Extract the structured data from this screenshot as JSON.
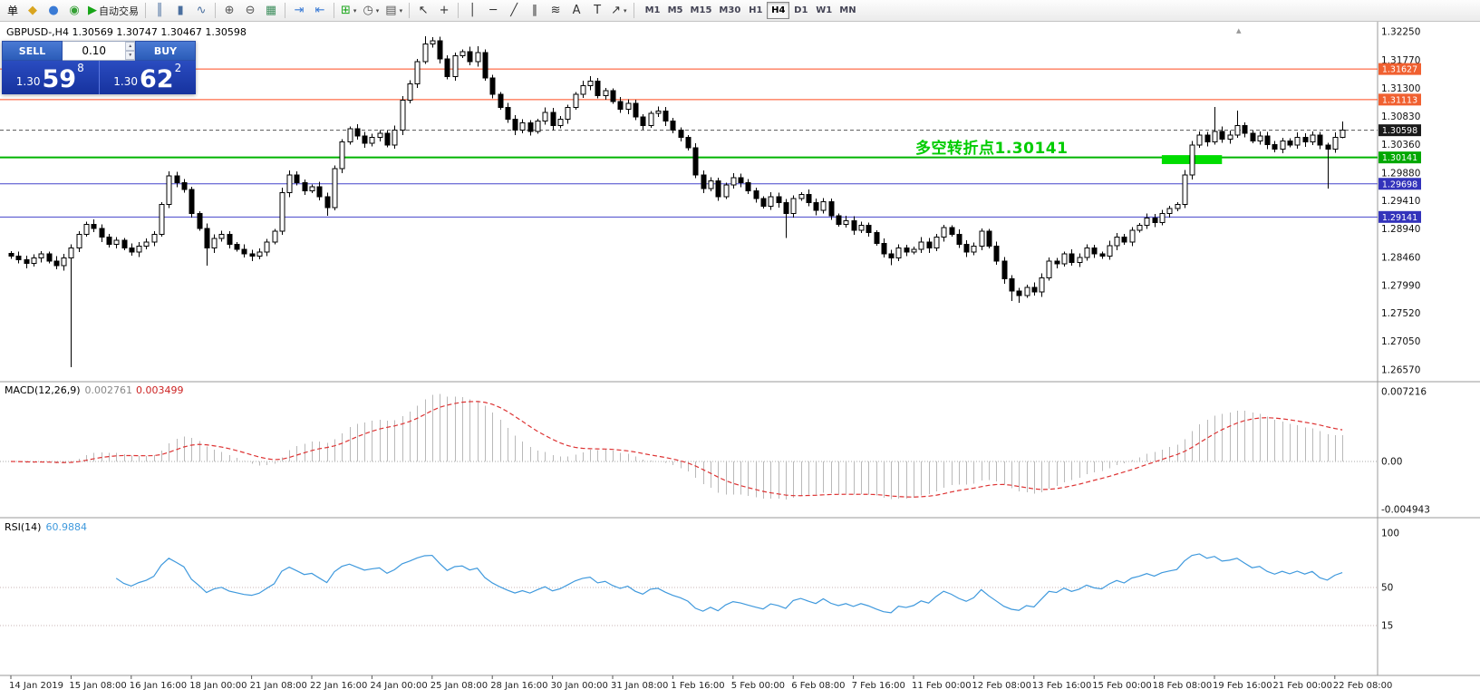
{
  "toolbar": {
    "items": [
      {
        "type": "label",
        "name": "order-menu-label",
        "text": "单"
      },
      {
        "type": "icon",
        "name": "new-order-icon",
        "glyph": "◆",
        "color": "#d9a520"
      },
      {
        "type": "icon",
        "name": "market-watch-icon",
        "glyph": "●",
        "color": "#3a7bd5"
      },
      {
        "type": "icon",
        "name": "data-window-icon",
        "glyph": "◉",
        "color": "#35a035"
      },
      {
        "type": "button",
        "name": "auto-trading-button",
        "glyph": "▶",
        "color": "#17a517",
        "text": "自动交易"
      },
      {
        "type": "sep"
      },
      {
        "type": "icon",
        "name": "bar-chart-icon",
        "glyph": "║",
        "color": "#4a6f9f"
      },
      {
        "type": "icon",
        "name": "candlestick-chart-icon",
        "glyph": "▮",
        "color": "#4a6f9f"
      },
      {
        "type": "icon",
        "name": "line-chart-icon",
        "glyph": "∿",
        "color": "#4a6f9f"
      },
      {
        "type": "sep"
      },
      {
        "type": "icon",
        "name": "zoom-in-icon",
        "glyph": "⊕",
        "color": "#555555"
      },
      {
        "type": "icon",
        "name": "zoom-out-icon",
        "glyph": "⊖",
        "color": "#555555"
      },
      {
        "type": "icon",
        "name": "tile-windows-icon",
        "glyph": "▦",
        "color": "#3f8f5f"
      },
      {
        "type": "sep"
      },
      {
        "type": "icon",
        "name": "chart-shift-icon",
        "glyph": "⇥",
        "color": "#3a7bd5"
      },
      {
        "type": "icon",
        "name": "auto-scroll-icon",
        "glyph": "⇤",
        "color": "#3a7bd5"
      },
      {
        "type": "sep"
      },
      {
        "type": "icon",
        "name": "indicators-icon",
        "glyph": "⊞",
        "color": "#17a517",
        "caret": true
      },
      {
        "type": "icon",
        "name": "periods-icon",
        "glyph": "◷",
        "color": "#555555",
        "caret": true
      },
      {
        "type": "icon",
        "name": "templates-icon",
        "glyph": "▤",
        "color": "#555555",
        "caret": true
      },
      {
        "type": "sep"
      },
      {
        "type": "icon",
        "name": "cursor-icon",
        "glyph": "↖",
        "color": "#333333"
      },
      {
        "type": "icon",
        "name": "crosshair-icon",
        "glyph": "+",
        "color": "#333333"
      },
      {
        "type": "sep"
      },
      {
        "type": "icon",
        "name": "vertical-line-icon",
        "glyph": "│",
        "color": "#333333"
      },
      {
        "type": "icon",
        "name": "horizontal-line-icon",
        "glyph": "─",
        "color": "#333333"
      },
      {
        "type": "icon",
        "name": "trendline-icon",
        "glyph": "╱",
        "color": "#333333"
      },
      {
        "type": "icon",
        "name": "channel-icon",
        "glyph": "∥",
        "color": "#333333"
      },
      {
        "type": "icon",
        "name": "fibonacci-icon",
        "glyph": "≋",
        "color": "#333333"
      },
      {
        "type": "icon",
        "name": "text-icon",
        "glyph": "A",
        "color": "#333333"
      },
      {
        "type": "icon",
        "name": "text-label-icon",
        "glyph": "T",
        "color": "#333333"
      },
      {
        "type": "icon",
        "name": "arrows-icon",
        "glyph": "↗",
        "color": "#333333",
        "caret": true
      },
      {
        "type": "sep"
      }
    ],
    "timeframes": [
      "M1",
      "M5",
      "M15",
      "M30",
      "H1",
      "H4",
      "D1",
      "W1",
      "MN"
    ],
    "active_timeframe": "H4"
  },
  "trade": {
    "sell_label": "SELL",
    "buy_label": "BUY",
    "lot": "0.10",
    "sell_price": {
      "prefix": "1.30",
      "big": "59",
      "sup": "8"
    },
    "buy_price": {
      "prefix": "1.30",
      "big": "62",
      "sup": "2"
    }
  },
  "chart": {
    "header": "GBPUSD-,H4 1.30569 1.30747 1.30467 1.30598",
    "annotation": {
      "text": "多空转折点1.30141",
      "color": "#00cc00"
    },
    "hlines": [
      {
        "price": 1.31627,
        "label": "1.31627",
        "color": "#ff4a1f",
        "badge": "#f06030",
        "style": "solid",
        "width": 1
      },
      {
        "price": 1.31113,
        "label": "1.31113",
        "color": "#ff4a1f",
        "badge": "#f06030",
        "style": "solid",
        "width": 1
      },
      {
        "price": 1.30598,
        "label": "1.30598",
        "color": "#555555",
        "badge": "#1a1a1a",
        "style": "dash",
        "width": 1
      },
      {
        "price": 1.30141,
        "label": "1.30141",
        "color": "#00b400",
        "badge": "#00a800",
        "style": "solid",
        "width": 2
      },
      {
        "price": 1.29698,
        "label": "1.29698",
        "color": "#4444cc",
        "badge": "#3333bb",
        "style": "solid",
        "width": 1
      },
      {
        "price": 1.29141,
        "label": "1.29141",
        "color": "#4444cc",
        "badge": "#3333bb",
        "style": "solid",
        "width": 1
      }
    ],
    "price_axis": [
      "1.32250",
      "1.31770",
      "1.31300",
      "1.30830",
      "1.30360",
      "1.29880",
      "1.29410",
      "1.28940",
      "1.28460",
      "1.27990",
      "1.27520",
      "1.27050",
      "1.26570"
    ],
    "highlight_box": {
      "from_bar": 153,
      "to_bar": 161,
      "price_top": 1.3018,
      "price_bottom": 1.3003,
      "color": "#00dd00"
    }
  },
  "macd": {
    "name": "MACD(12,26,9)",
    "value_main": "0.002761",
    "value_signal": "0.003499",
    "axis": [
      "0.007216",
      "0.00",
      "-0.004943"
    ]
  },
  "rsi": {
    "name": "RSI(14)",
    "value": "60.9884",
    "axis": [
      "100",
      "50",
      "15"
    ]
  },
  "chart_data": {
    "type": "candlestick",
    "symbol": "GBPUSD-",
    "timeframe": "H4",
    "title": "GBPUSD- H4",
    "ylim": [
      1.2648,
      1.3236
    ],
    "current_bar": {
      "open": 1.30569,
      "high": 1.30747,
      "low": 1.30467,
      "close": 1.30598
    },
    "first_open": 1.2853,
    "closes": [
      1.2848,
      1.2842,
      1.2836,
      1.2845,
      1.2852,
      1.284,
      1.2832,
      1.2845,
      1.2862,
      1.2885,
      1.2902,
      1.2895,
      1.288,
      1.2868,
      1.2875,
      1.2862,
      1.2855,
      1.2865,
      1.2872,
      1.2885,
      1.2935,
      1.2983,
      1.2972,
      1.296,
      1.292,
      1.2895,
      1.2862,
      1.2878,
      1.2885,
      1.2868,
      1.286,
      1.2852,
      1.2848,
      1.2855,
      1.2872,
      1.289,
      1.2955,
      1.2985,
      1.2972,
      1.2958,
      1.2965,
      1.2948,
      1.293,
      1.2995,
      1.304,
      1.3062,
      1.305,
      1.3038,
      1.3048,
      1.3055,
      1.3035,
      1.306,
      1.311,
      1.3138,
      1.3175,
      1.3205,
      1.321,
      1.318,
      1.315,
      1.3185,
      1.3192,
      1.3175,
      1.319,
      1.3148,
      1.312,
      1.3098,
      1.3078,
      1.306,
      1.3072,
      1.3058,
      1.3075,
      1.309,
      1.3068,
      1.3078,
      1.3098,
      1.312,
      1.3135,
      1.3142,
      1.3118,
      1.3126,
      1.3108,
      1.3095,
      1.3105,
      1.3082,
      1.3068,
      1.3088,
      1.3092,
      1.3075,
      1.306,
      1.3048,
      1.303,
      1.2985,
      1.2962,
      1.2975,
      1.2948,
      1.2968,
      1.298,
      1.2972,
      1.2958,
      1.2945,
      1.2932,
      1.2948,
      1.2938,
      1.292,
      1.2945,
      1.2952,
      1.2938,
      1.2925,
      1.294,
      1.2916,
      1.2902,
      1.2908,
      1.2892,
      1.29,
      1.2888,
      1.287,
      1.2852,
      1.2845,
      1.2862,
      1.2855,
      1.286,
      1.2872,
      1.2862,
      1.288,
      1.2896,
      1.2885,
      1.2868,
      1.2855,
      1.2865,
      1.289,
      1.2865,
      1.284,
      1.281,
      1.279,
      1.2782,
      1.2796,
      1.2788,
      1.2812,
      1.284,
      1.2835,
      1.2852,
      1.2838,
      1.2846,
      1.2862,
      1.2852,
      1.2848,
      1.2866,
      1.288,
      1.2872,
      1.2892,
      1.29,
      1.2912,
      1.2905,
      1.292,
      1.2928,
      1.2935,
      1.2985,
      1.3035,
      1.3052,
      1.304,
      1.3058,
      1.3045,
      1.3052,
      1.3068,
      1.3055,
      1.3042,
      1.305,
      1.3036,
      1.3028,
      1.3042,
      1.3035,
      1.3048,
      1.304,
      1.3052,
      1.3035,
      1.3028,
      1.3048,
      1.30598
    ],
    "wick_overrides": {
      "8": {
        "low": 1.2662
      },
      "26": {
        "low": 1.2832
      },
      "42": {
        "low": 1.2916
      },
      "55": {
        "high": 1.3218
      },
      "56": {
        "high": 1.3216
      },
      "62": {
        "high": 1.3201
      },
      "77": {
        "high": 1.3151
      },
      "103": {
        "low": 1.2879
      },
      "117": {
        "low": 1.2833
      },
      "133": {
        "low": 1.2773
      },
      "134": {
        "low": 1.277
      },
      "160": {
        "high": 1.3099
      },
      "163": {
        "high": 1.3093
      },
      "175": {
        "low": 1.2962
      },
      "177": {
        "high": 1.30747,
        "low": 1.30467
      }
    },
    "time_labels": [
      [
        0,
        "14 Jan 2019"
      ],
      [
        8,
        "15 Jan 08:00"
      ],
      [
        16,
        "16 Jan 16:00"
      ],
      [
        24,
        "18 Jan 00:00"
      ],
      [
        32,
        "21 Jan 08:00"
      ],
      [
        40,
        "22 Jan 16:00"
      ],
      [
        48,
        "24 Jan 00:00"
      ],
      [
        56,
        "25 Jan 08:00"
      ],
      [
        64,
        "28 Jan 16:00"
      ],
      [
        72,
        "30 Jan 00:00"
      ],
      [
        80,
        "31 Jan 08:00"
      ],
      [
        88,
        "1 Feb 16:00"
      ],
      [
        96,
        "5 Feb 00:00"
      ],
      [
        104,
        "6 Feb 08:00"
      ],
      [
        112,
        "7 Feb 16:00"
      ],
      [
        120,
        "11 Feb 00:00"
      ],
      [
        128,
        "12 Feb 08:00"
      ],
      [
        136,
        "13 Feb 16:00"
      ],
      [
        144,
        "15 Feb 00:00"
      ],
      [
        152,
        "18 Feb 08:00"
      ],
      [
        160,
        "19 Feb 16:00"
      ],
      [
        168,
        "21 Feb 00:00"
      ],
      [
        176,
        "22 Feb 08:00"
      ]
    ],
    "indicators": [
      {
        "name": "MACD",
        "params": [
          12,
          26,
          9
        ],
        "last_values": [
          0.002761,
          0.003499
        ],
        "axis_max": 0.007216,
        "axis_min": -0.004943
      },
      {
        "name": "RSI",
        "params": [
          14
        ],
        "last_value": 60.9884,
        "levels": [
          100,
          50,
          15
        ]
      }
    ]
  }
}
